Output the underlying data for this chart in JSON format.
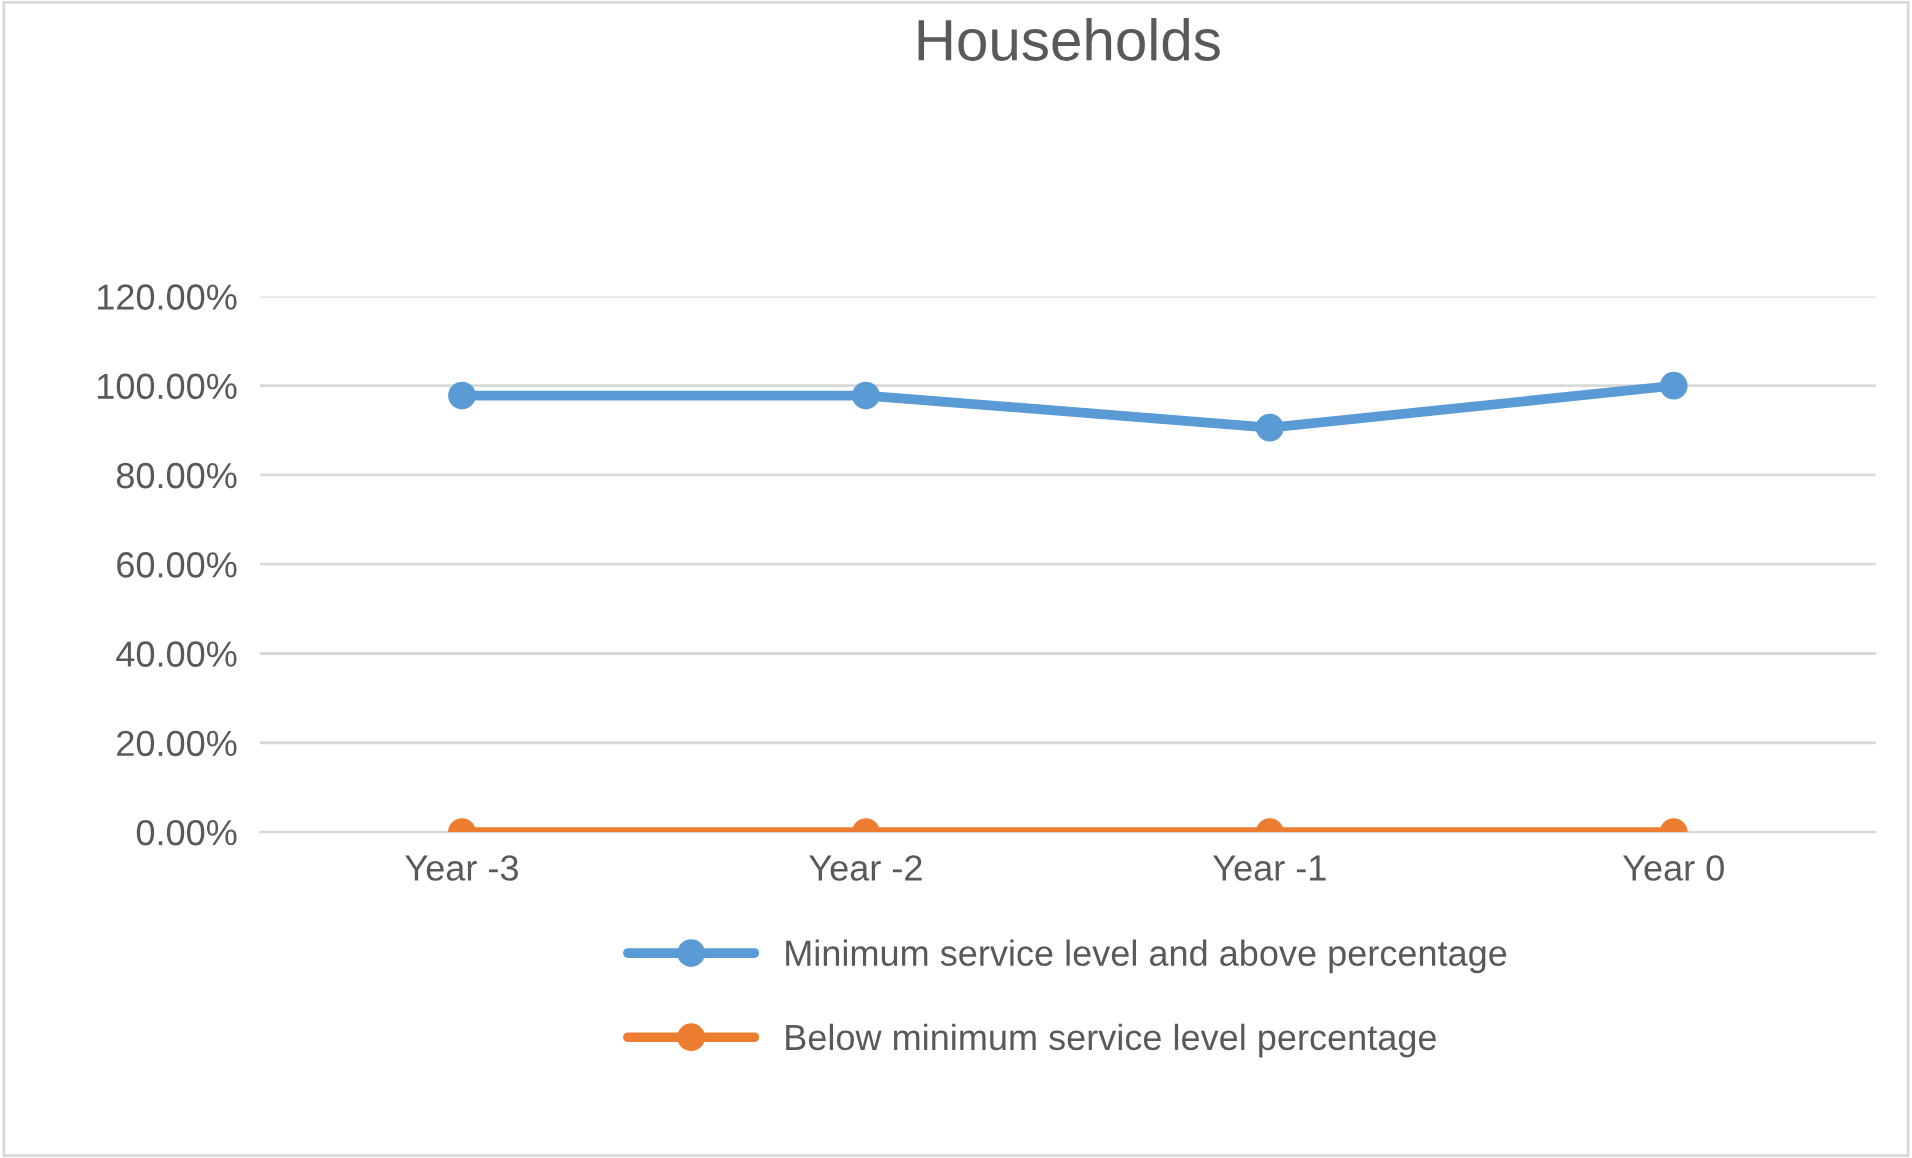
{
  "chart_data": {
    "type": "line",
    "title": "Households",
    "categories": [
      "Year -3",
      "Year -2",
      "Year -1",
      "Year 0"
    ],
    "series": [
      {
        "name": "Minimum service level and above percentage",
        "color": "#5b9bd5",
        "values": [
          97.8,
          97.8,
          90.6,
          100
        ]
      },
      {
        "name": "Below minimum service level percentage",
        "color": "#ed7d31",
        "values": [
          0,
          0,
          0,
          0
        ]
      }
    ],
    "ylim": [
      0,
      120
    ],
    "yticks": [
      {
        "value": 0,
        "label": "0.00%"
      },
      {
        "value": 20,
        "label": "20.00%"
      },
      {
        "value": 40,
        "label": "40.00%"
      },
      {
        "value": 60,
        "label": "60.00%"
      },
      {
        "value": 80,
        "label": "80.00%"
      },
      {
        "value": 100,
        "label": "100.00%"
      },
      {
        "value": 120,
        "label": "120.00%"
      }
    ],
    "grid": "y",
    "legend": "bottom",
    "marker": "circle",
    "line_style": "solid"
  }
}
